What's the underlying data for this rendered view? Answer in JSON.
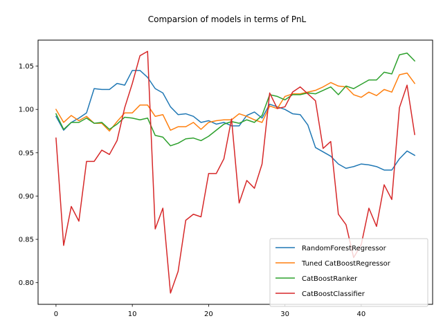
{
  "chart_data": {
    "type": "line",
    "title": "Comparsion of models in terms of PnL",
    "xlabel": "",
    "ylabel": "",
    "xlim": [
      -2.35,
      49.35
    ],
    "ylim": [
      0.775,
      1.08
    ],
    "x_ticks": [
      0,
      10,
      20,
      30,
      40
    ],
    "y_ticks": [
      0.8,
      0.85,
      0.9,
      0.95,
      1.0,
      1.05
    ],
    "x_tick_labels": [
      "0",
      "10",
      "20",
      "30",
      "40"
    ],
    "y_tick_labels": [
      "0.80",
      "0.85",
      "0.90",
      "0.95",
      "1.00",
      "1.05"
    ],
    "grid": false,
    "legend_position": "bottom-right",
    "x": [
      0,
      1,
      2,
      3,
      4,
      5,
      6,
      7,
      8,
      9,
      10,
      11,
      12,
      13,
      14,
      15,
      16,
      17,
      18,
      19,
      20,
      21,
      22,
      23,
      24,
      25,
      26,
      27,
      28,
      29,
      30,
      31,
      32,
      33,
      34,
      35,
      36,
      37,
      38,
      39,
      40,
      41,
      42,
      43,
      44,
      45,
      46,
      47
    ],
    "series": [
      {
        "name": "RandomForestRegressor",
        "color": "#1f77b4",
        "values": [
          0.992,
          0.976,
          0.985,
          0.99,
          0.996,
          1.024,
          1.023,
          1.023,
          1.03,
          1.028,
          1.045,
          1.045,
          1.037,
          1.024,
          1.019,
          1.003,
          0.994,
          0.995,
          0.992,
          0.985,
          0.987,
          0.983,
          0.985,
          0.981,
          0.981,
          0.993,
          0.997,
          0.99,
          1.006,
          1.003,
          1.0,
          0.995,
          0.994,
          0.982,
          0.956,
          0.951,
          0.946,
          0.937,
          0.932,
          0.934,
          0.937,
          0.936,
          0.934,
          0.93,
          0.93,
          0.943,
          0.952,
          0.947
        ]
      },
      {
        "name": "Tuned CatBoostRegressor",
        "color": "#ff7f0e",
        "values": [
          1.0,
          0.985,
          0.993,
          0.987,
          0.992,
          0.984,
          0.984,
          0.975,
          0.986,
          0.996,
          0.996,
          1.005,
          1.005,
          0.992,
          0.994,
          0.976,
          0.98,
          0.98,
          0.985,
          0.977,
          0.985,
          0.987,
          0.988,
          0.988,
          0.995,
          0.992,
          0.988,
          0.985,
          1.004,
          1.001,
          1.015,
          1.018,
          1.018,
          1.02,
          1.022,
          1.026,
          1.031,
          1.027,
          1.026,
          1.017,
          1.014,
          1.02,
          1.016,
          1.023,
          1.02,
          1.04,
          1.042,
          1.03
        ]
      },
      {
        "name": "CatBoostRanker",
        "color": "#2ca02c",
        "values": [
          0.995,
          0.977,
          0.985,
          0.985,
          0.99,
          0.984,
          0.985,
          0.977,
          0.983,
          0.991,
          0.99,
          0.988,
          0.99,
          0.97,
          0.968,
          0.958,
          0.961,
          0.966,
          0.967,
          0.964,
          0.969,
          0.976,
          0.983,
          0.986,
          0.984,
          0.988,
          0.985,
          0.993,
          1.017,
          1.015,
          1.011,
          1.017,
          1.017,
          1.019,
          1.018,
          1.022,
          1.026,
          1.017,
          1.027,
          1.024,
          1.029,
          1.034,
          1.034,
          1.043,
          1.041,
          1.063,
          1.065,
          1.056
        ]
      },
      {
        "name": "CatBoostClassifier",
        "color": "#d62728",
        "values": [
          0.967,
          0.843,
          0.888,
          0.871,
          0.94,
          0.94,
          0.953,
          0.948,
          0.964,
          1.002,
          1.03,
          1.062,
          1.067,
          0.862,
          0.886,
          0.788,
          0.813,
          0.872,
          0.879,
          0.876,
          0.926,
          0.926,
          0.943,
          0.989,
          0.892,
          0.918,
          0.909,
          0.937,
          1.019,
          1.001,
          1.003,
          1.02,
          1.026,
          1.018,
          1.01,
          0.955,
          0.963,
          0.879,
          0.867,
          0.829,
          0.844,
          0.886,
          0.865,
          0.913,
          0.896,
          1.002,
          1.028,
          0.971
        ]
      }
    ]
  }
}
